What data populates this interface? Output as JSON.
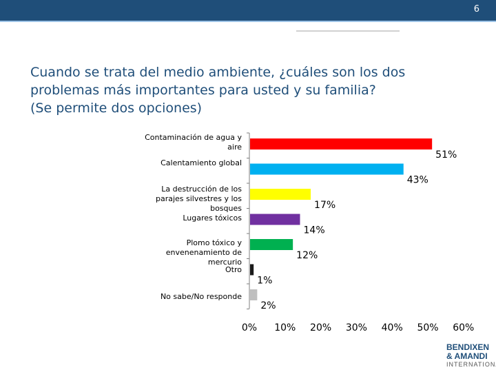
{
  "page_number": "6",
  "title_lines": [
    "Cuando se trata del medio ambiente, ¿cuáles son los dos",
    "problemas más importantes para usted y su familia?",
    "(Se permite dos opciones)"
  ],
  "logo": {
    "line1": "BENDIXEN",
    "line2": "& AMANDI",
    "line3": "INTERNATIONAL"
  },
  "chart_data": {
    "type": "bar",
    "orientation": "horizontal",
    "categories": [
      "Contaminación de agua y aire",
      "Calentamiento global",
      "La destrucción de los parajes silvestres y los bosques",
      "Lugares tóxicos",
      "Plomo tóxico y envenenamiento de mercurio",
      "Otro",
      "No sabe/No responde"
    ],
    "values": [
      51,
      43,
      17,
      14,
      12,
      1,
      2
    ],
    "value_labels": [
      "51%",
      "43%",
      "17%",
      "14%",
      "12%",
      "1%",
      "2%"
    ],
    "colors": [
      "#ff0000",
      "#00b0f0",
      "#ffff00",
      "#7030a0",
      "#00b050",
      "#1a1a1a",
      "#bfbfbf"
    ],
    "xlim": [
      0,
      60
    ],
    "xticks": [
      0,
      10,
      20,
      30,
      40,
      50,
      60
    ],
    "xtick_labels": [
      "0%",
      "10%",
      "20%",
      "30%",
      "40%",
      "50%",
      "60%"
    ],
    "grid": false
  }
}
